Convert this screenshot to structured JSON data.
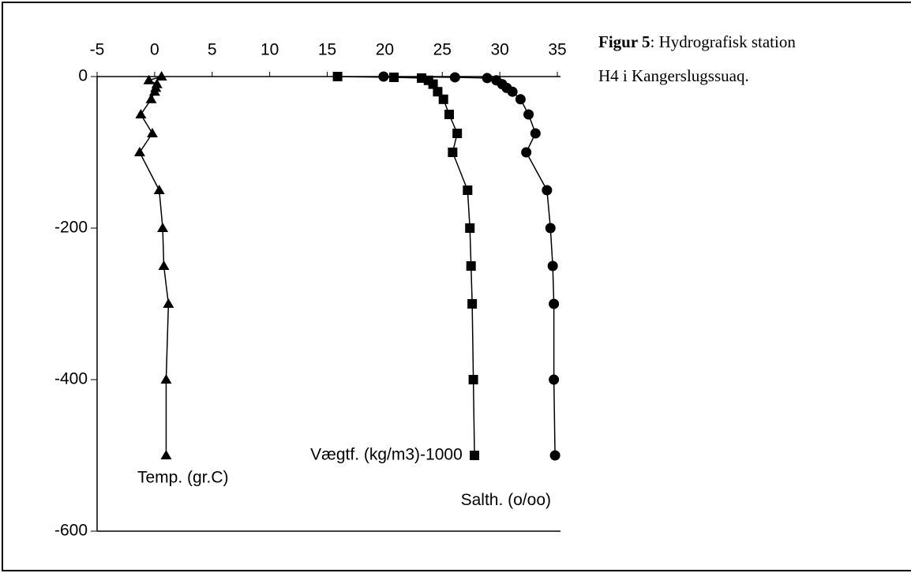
{
  "chart_data": {
    "type": "line",
    "caption": {
      "label": "Figur 5",
      "lines": [
        ": Hydrografisk station",
        "H4 i Kangerslugssuaq."
      ]
    },
    "xlim": [
      -5,
      35
    ],
    "xticks": [
      -5,
      0,
      5,
      10,
      15,
      20,
      25,
      30,
      35
    ],
    "ylim": [
      -600,
      0
    ],
    "yticks": [
      0,
      -200,
      -400,
      -600
    ],
    "series": [
      {
        "name": "Temp. (gr.C)",
        "marker": "triangle",
        "color": "#000000",
        "x": [
          0.6,
          -0.5,
          0.2,
          0.1,
          0,
          -0.3,
          -1.2,
          -0.2,
          -1.3,
          0.4,
          0.7,
          0.8,
          1.2,
          1,
          1
        ],
        "values": [
          0,
          -5,
          -10,
          -15,
          -20,
          -30,
          -50,
          -75,
          -100,
          -150,
          -200,
          -250,
          -300,
          -400,
          -500
        ]
      },
      {
        "name": "Vægtf. (kg/m3)-1000",
        "marker": "square",
        "color": "#000000",
        "x": [
          15.9,
          20.8,
          23.2,
          23.8,
          24.2,
          24.6,
          25.1,
          25.6,
          26.3,
          25.9,
          27.2,
          27.4,
          27.5,
          27.6,
          27.7,
          27.8
        ],
        "values": [
          0,
          -1,
          -2,
          -5,
          -10,
          -20,
          -30,
          -50,
          -75,
          -100,
          -150,
          -200,
          -250,
          -300,
          -400,
          -500
        ]
      },
      {
        "name": "Salth. (o/oo)",
        "marker": "circle",
        "color": "#000000",
        "x": [
          19.9,
          26.1,
          28.9,
          29.7,
          30.2,
          30.6,
          31.1,
          31.8,
          32.5,
          33.1,
          32.3,
          34.1,
          34.4,
          34.6,
          34.7,
          34.7,
          34.8
        ],
        "values": [
          0,
          -1,
          -2,
          -5,
          -10,
          -15,
          -20,
          -30,
          -50,
          -75,
          -100,
          -150,
          -200,
          -250,
          -300,
          -400,
          -500
        ]
      }
    ]
  }
}
